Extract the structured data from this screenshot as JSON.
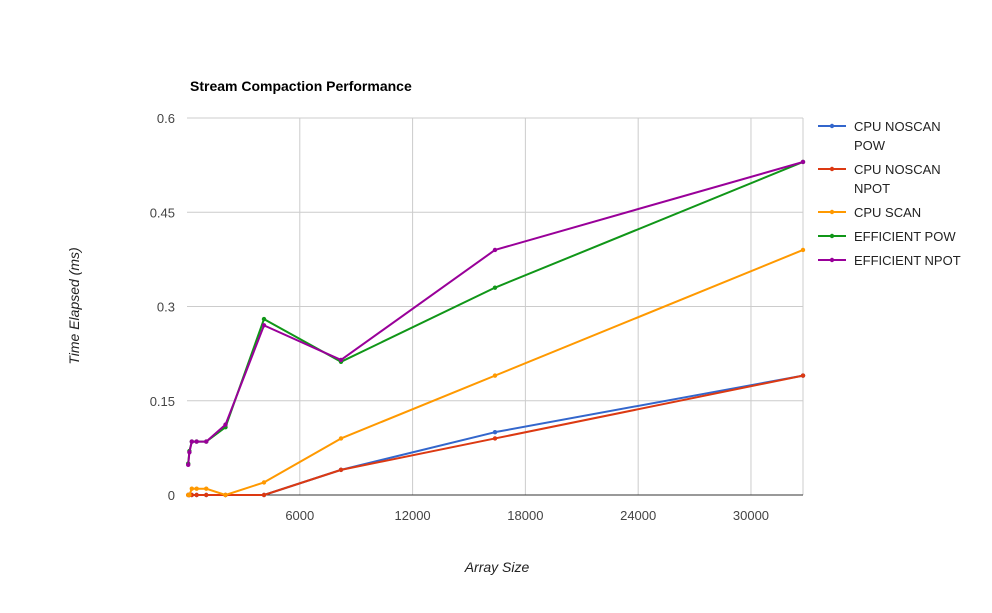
{
  "chart_data": {
    "type": "line",
    "title": "Stream Compaction Performance",
    "xlabel": "Array Size",
    "ylabel": "Time Elapsed (ms)",
    "xlim": [
      0,
      32768
    ],
    "ylim": [
      0,
      0.6
    ],
    "x_ticks": [
      6000,
      12000,
      18000,
      24000,
      30000
    ],
    "y_ticks": [
      0,
      0.15,
      0.3,
      0.45,
      0.6
    ],
    "y_tick_labels": [
      "0",
      "0.15",
      "0.3",
      "0.45",
      "0.6"
    ],
    "grid": true,
    "legend_position": "right",
    "x": [
      64,
      128,
      256,
      512,
      1024,
      2048,
      4096,
      8192,
      16384,
      32768
    ],
    "series": [
      {
        "name": "CPU NOSCAN POW",
        "legend_lines": [
          "CPU NOSCAN",
          "POW"
        ],
        "color": "#3366cc",
        "values": [
          0,
          0,
          0,
          0,
          0,
          0,
          0,
          0.04,
          0.1,
          0.19
        ]
      },
      {
        "name": "CPU NOSCAN NPOT",
        "legend_lines": [
          "CPU NOSCAN",
          "NPOT"
        ],
        "color": "#dc3912",
        "values": [
          0,
          0,
          0,
          0,
          0,
          0,
          0,
          0.04,
          0.09,
          0.19
        ]
      },
      {
        "name": "CPU SCAN",
        "legend_lines": [
          "CPU SCAN"
        ],
        "color": "#ff9900",
        "values": [
          0,
          0,
          0.01,
          0.01,
          0.01,
          0,
          0.02,
          0.09,
          0.19,
          0.39
        ]
      },
      {
        "name": "EFFICIENT POW",
        "legend_lines": [
          "EFFICIENT POW"
        ],
        "color": "#109618",
        "values": [
          0.05,
          0.07,
          0.085,
          0.085,
          0.085,
          0.108,
          0.28,
          0.212,
          0.33,
          0.53
        ]
      },
      {
        "name": "EFFICIENT NPOT",
        "legend_lines": [
          "EFFICIENT NPOT"
        ],
        "color": "#990099",
        "values": [
          0.048,
          0.068,
          0.085,
          0.085,
          0.085,
          0.112,
          0.27,
          0.215,
          0.39,
          0.53
        ]
      }
    ]
  }
}
